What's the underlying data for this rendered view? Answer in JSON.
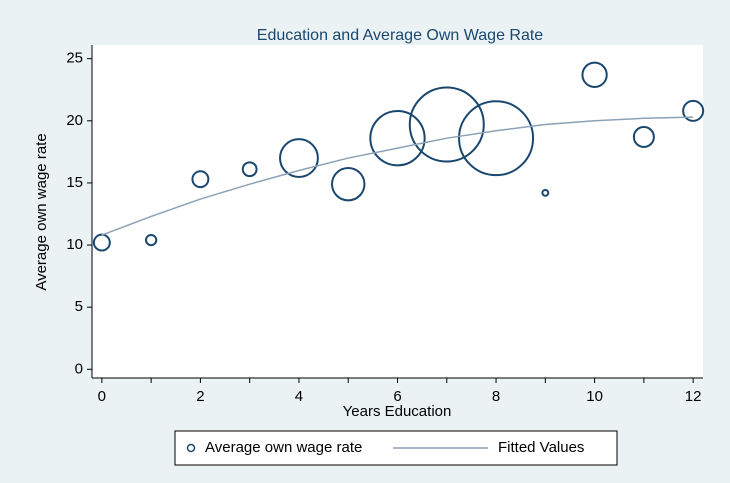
{
  "chart_data": {
    "type": "scatter",
    "title": "Education and Average Own Wage Rate",
    "x_label": "Years Education",
    "y_label": "Average own wage rate",
    "x": [
      0,
      1,
      2,
      3,
      4,
      5,
      6,
      7,
      8,
      9,
      10,
      11,
      12
    ],
    "series": [
      {
        "name": "Average own wage rate",
        "color": "#1a476f",
        "style": "bubble",
        "values": [
          10.2,
          10.4,
          15.3,
          16.1,
          17.0,
          14.9,
          18.6,
          19.7,
          18.6,
          14.2,
          23.7,
          18.7,
          20.8
        ],
        "sizes": [
          60,
          25,
          60,
          45,
          340,
          250,
          700,
          1300,
          1300,
          8,
          140,
          95,
          95
        ]
      },
      {
        "name": "Fitted Values",
        "color": "#8ca1b7",
        "style": "line",
        "values": [
          10.8,
          12.3,
          13.7,
          14.9,
          16.0,
          17.0,
          17.8,
          18.6,
          19.2,
          19.7,
          20.0,
          20.2,
          20.3
        ]
      }
    ],
    "xlim": [
      -0.2,
      12.2
    ],
    "ylim": [
      -0.7,
      26.1
    ],
    "xticks": [
      0,
      2,
      4,
      6,
      8,
      10,
      12
    ],
    "xminorticks": [
      1,
      3,
      5,
      7,
      9,
      11
    ],
    "yticks": [
      0,
      5,
      10,
      15,
      20,
      25
    ],
    "grid": false
  }
}
